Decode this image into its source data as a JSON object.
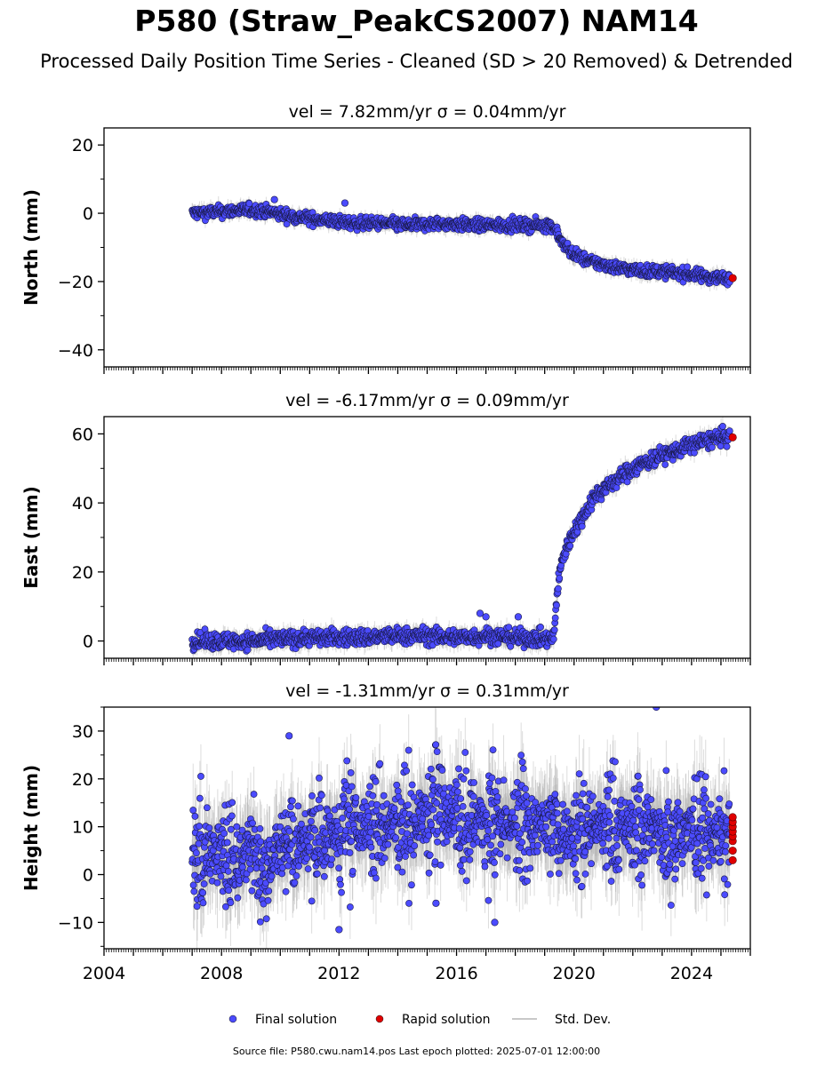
{
  "title": "P580 (Straw_PeakCS2007) NAM14",
  "subtitle": "Processed Daily Position Time Series - Cleaned (SD > 20 Removed) & Detrended",
  "footer": "Source file: P580.cwu.nam14.pos  Last epoch plotted: 2025-07-01 12:00:00",
  "legend": [
    {
      "label": "Final solution",
      "marker": "circle",
      "color": "#4b4bff"
    },
    {
      "label": "Rapid solution",
      "marker": "circle",
      "color": "#e00000"
    },
    {
      "label": "Std. Dev.",
      "marker": "line",
      "color": "#c8c8c8"
    }
  ],
  "colors": {
    "final": "#4b4bff",
    "rapid": "#e00000",
    "stddev": "#9a9a9a",
    "edge": "#1a1a4a"
  },
  "chart_data": [
    {
      "type": "scatter",
      "title": "vel = 7.82mm/yr   σ = 0.04mm/yr",
      "ylabel": "North (mm)",
      "xlim": [
        2004,
        2026
      ],
      "ylim": [
        -45,
        25
      ],
      "yticks": [
        20,
        0,
        -20,
        -40
      ],
      "grid": false,
      "series": [
        {
          "name": "Final solution",
          "points": [
            [
              2007.0,
              0
            ],
            [
              2008.0,
              0.5
            ],
            [
              2009.0,
              1
            ],
            [
              2009.5,
              0.5
            ],
            [
              2010.5,
              -1
            ],
            [
              2011.5,
              -2
            ],
            [
              2012.5,
              -3
            ],
            [
              2013.5,
              -3
            ],
            [
              2014.5,
              -3.5
            ],
            [
              2015.5,
              -3
            ],
            [
              2016.5,
              -3.5
            ],
            [
              2017.5,
              -3.5
            ],
            [
              2018.5,
              -3.5
            ],
            [
              2019.2,
              -3.5
            ],
            [
              2019.4,
              -5
            ],
            [
              2019.6,
              -9
            ],
            [
              2020.0,
              -12
            ],
            [
              2020.5,
              -14
            ],
            [
              2021.0,
              -15
            ],
            [
              2021.5,
              -16
            ],
            [
              2022.0,
              -16.5
            ],
            [
              2022.5,
              -17
            ],
            [
              2023.0,
              -17
            ],
            [
              2023.5,
              -17.5
            ],
            [
              2024.0,
              -18
            ],
            [
              2024.5,
              -18.5
            ],
            [
              2025.0,
              -19
            ]
          ]
        },
        {
          "name": "Rapid solution",
          "points": [
            [
              2025.4,
              -19
            ]
          ]
        }
      ],
      "outliers": [
        [
          2012.2,
          3
        ],
        [
          2009.8,
          4
        ]
      ]
    },
    {
      "type": "scatter",
      "title": "vel = -6.17mm/yr   σ = 0.09mm/yr",
      "ylabel": "East (mm)",
      "xlim": [
        2004,
        2026
      ],
      "ylim": [
        -5,
        65
      ],
      "yticks": [
        60,
        40,
        20,
        0
      ],
      "grid": false,
      "series": [
        {
          "name": "Final solution",
          "points": [
            [
              2007.0,
              0
            ],
            [
              2008.0,
              0
            ],
            [
              2009.0,
              0
            ],
            [
              2010.0,
              0.5
            ],
            [
              2011.0,
              1
            ],
            [
              2012.0,
              1
            ],
            [
              2013.0,
              1
            ],
            [
              2014.0,
              1.5
            ],
            [
              2015.0,
              1.5
            ],
            [
              2016.0,
              1
            ],
            [
              2017.0,
              1.5
            ],
            [
              2018.0,
              1
            ],
            [
              2019.3,
              0.5
            ],
            [
              2019.45,
              16
            ],
            [
              2019.6,
              24
            ],
            [
              2019.8,
              28
            ],
            [
              2020.0,
              32
            ],
            [
              2020.3,
              36
            ],
            [
              2020.6,
              41
            ],
            [
              2021.0,
              44
            ],
            [
              2021.5,
              47
            ],
            [
              2022.0,
              50
            ],
            [
              2022.5,
              52
            ],
            [
              2023.0,
              54
            ],
            [
              2023.5,
              55
            ],
            [
              2024.0,
              57
            ],
            [
              2024.5,
              58
            ],
            [
              2025.0,
              59
            ]
          ]
        },
        {
          "name": "Rapid solution",
          "points": [
            [
              2025.4,
              59
            ]
          ]
        }
      ],
      "outliers": [
        [
          2016.8,
          8
        ],
        [
          2017.0,
          7
        ],
        [
          2018.1,
          7
        ]
      ]
    },
    {
      "type": "scatter",
      "title": "vel = -1.31mm/yr   σ = 0.31mm/yr",
      "ylabel": "Height (mm)",
      "xlim": [
        2004,
        2026
      ],
      "ylim": [
        -15.5,
        35
      ],
      "yticks": [
        30,
        20,
        10,
        0,
        -10
      ],
      "xticks": [
        2004,
        2008,
        2012,
        2016,
        2020,
        2024
      ],
      "grid": false,
      "series": [
        {
          "name": "Final solution",
          "points": [
            [
              2007.0,
              4
            ],
            [
              2007.5,
              5
            ],
            [
              2008.0,
              4
            ],
            [
              2008.5,
              3
            ],
            [
              2009.0,
              5
            ],
            [
              2009.5,
              2
            ],
            [
              2010.0,
              6
            ],
            [
              2010.5,
              6
            ],
            [
              2011.0,
              7
            ],
            [
              2011.5,
              8
            ],
            [
              2012.0,
              8
            ],
            [
              2012.5,
              10
            ],
            [
              2013.0,
              10
            ],
            [
              2013.5,
              11
            ],
            [
              2014.0,
              11
            ],
            [
              2014.5,
              11
            ],
            [
              2015.0,
              12
            ],
            [
              2015.5,
              14
            ],
            [
              2016.0,
              13
            ],
            [
              2016.5,
              12
            ],
            [
              2017.0,
              11
            ],
            [
              2017.5,
              10
            ],
            [
              2018.0,
              10
            ],
            [
              2018.5,
              10
            ],
            [
              2019.0,
              10
            ],
            [
              2019.5,
              9
            ],
            [
              2020.0,
              9
            ],
            [
              2020.5,
              10
            ],
            [
              2021.0,
              10
            ],
            [
              2021.5,
              10
            ],
            [
              2022.0,
              10
            ],
            [
              2022.5,
              10
            ],
            [
              2023.0,
              9
            ],
            [
              2023.5,
              9
            ],
            [
              2024.0,
              9
            ],
            [
              2024.5,
              9
            ],
            [
              2025.0,
              8
            ]
          ]
        },
        {
          "name": "Rapid solution",
          "points": [
            [
              2025.4,
              3
            ],
            [
              2025.4,
              5
            ],
            [
              2025.4,
              7
            ],
            [
              2025.4,
              8
            ],
            [
              2025.4,
              9
            ],
            [
              2025.4,
              10
            ],
            [
              2025.4,
              11
            ],
            [
              2025.4,
              12
            ]
          ]
        }
      ],
      "outliers": [
        [
          2010.3,
          29
        ],
        [
          2012.0,
          -11.5
        ],
        [
          2022.8,
          35
        ],
        [
          2017.3,
          -10
        ],
        [
          2015.3,
          -6
        ]
      ]
    }
  ]
}
